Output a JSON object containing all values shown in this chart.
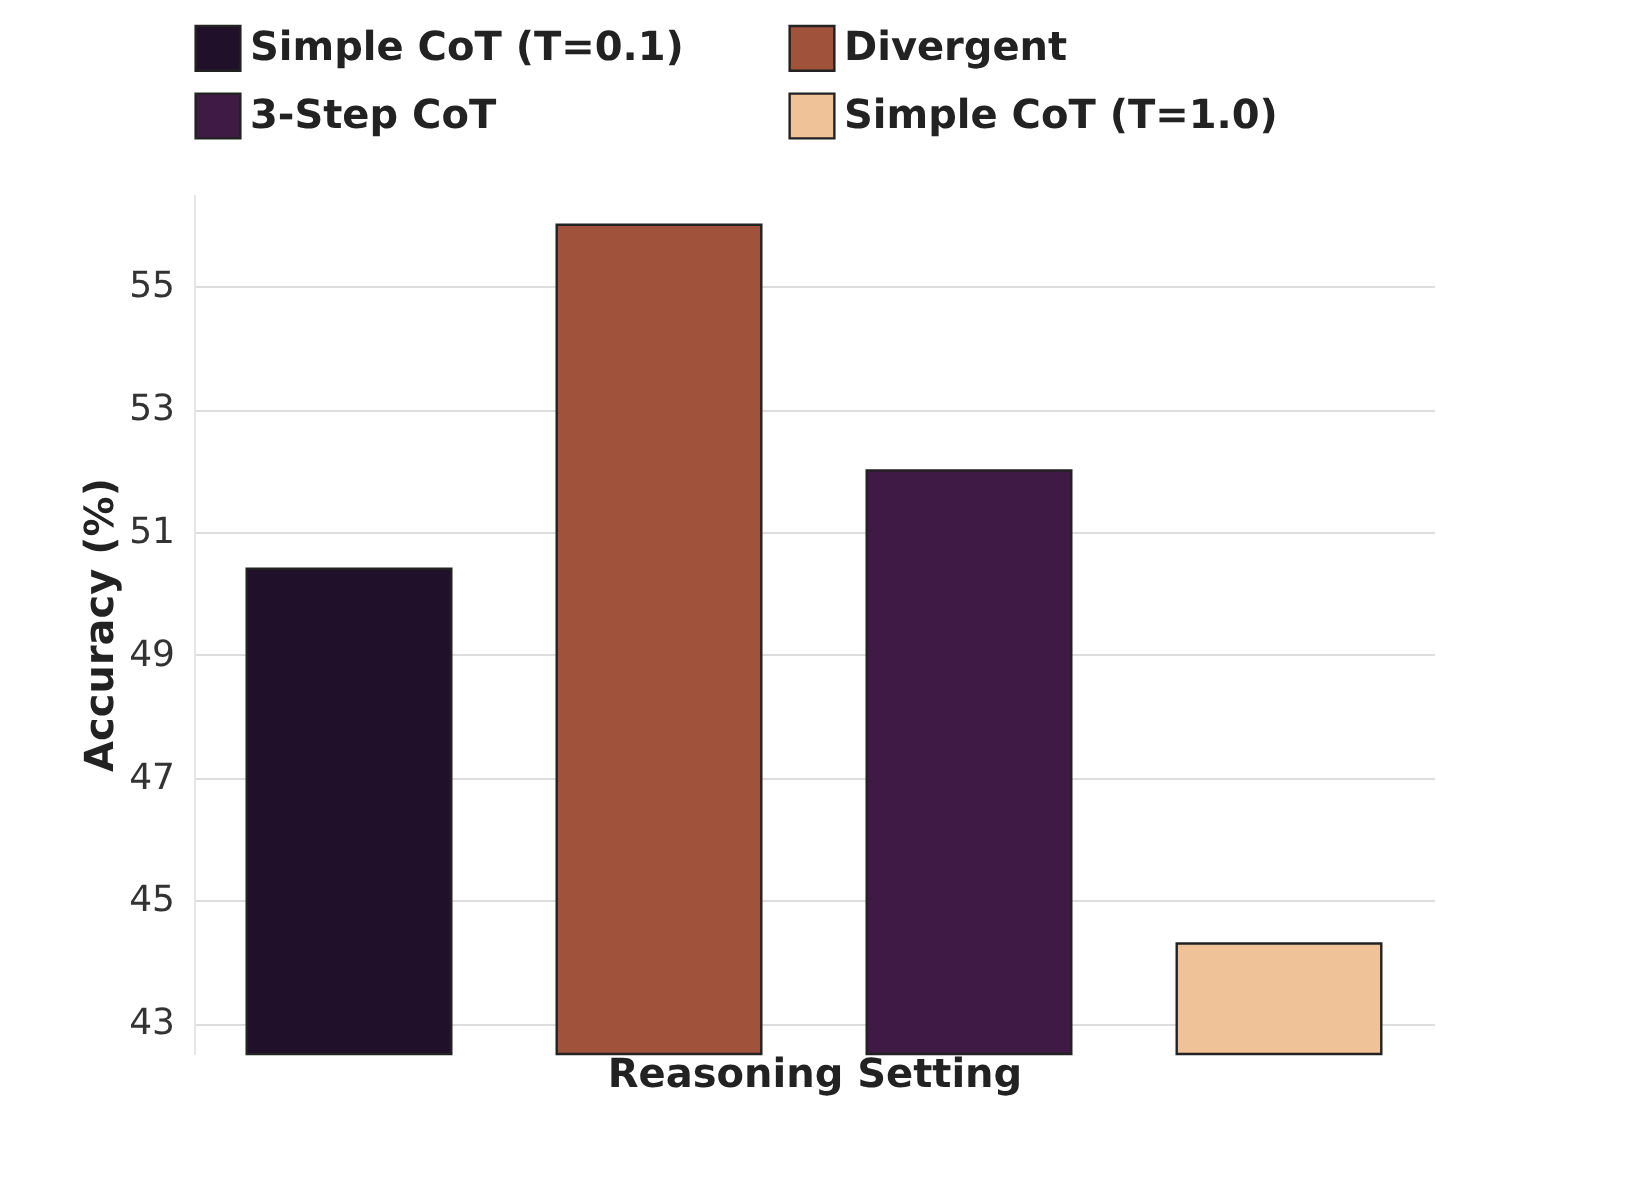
{
  "chart_data": {
    "type": "bar",
    "xlabel": "Reasoning Setting",
    "ylabel": "Accuracy (%)",
    "categories": [
      null,
      null,
      null,
      null
    ],
    "series": [
      {
        "name": "Simple CoT (T=0.1)",
        "color": "#211029",
        "values": [
          50.4,
          null,
          null,
          null
        ]
      },
      {
        "name": "Divergent",
        "color": "#a0523a",
        "values": [
          null,
          56.0,
          null,
          null
        ]
      },
      {
        "name": "3-Step CoT",
        "color": "#3e1a45",
        "values": [
          null,
          null,
          52.0,
          null
        ]
      },
      {
        "name": "Simple CoT (T=1.0)",
        "color": "#efc297",
        "values": [
          null,
          null,
          null,
          44.3
        ]
      }
    ],
    "ylim": [
      42.5,
      56.5
    ],
    "yticks": [
      43,
      45,
      47,
      49,
      51,
      53,
      55
    ],
    "grid": "y",
    "legend": "top"
  }
}
